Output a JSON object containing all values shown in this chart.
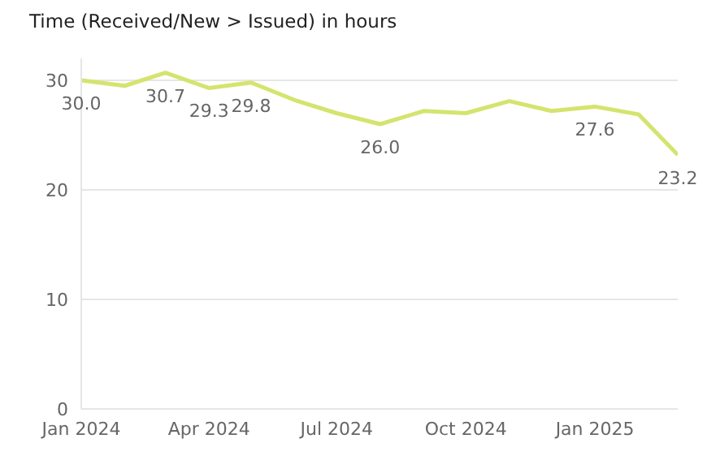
{
  "chart_data": {
    "type": "line",
    "title": "Time (Received/New > Issued) in hours",
    "x": [
      "2024-01",
      "2024-02",
      "2024-03",
      "2024-04",
      "2024-05",
      "2024-06",
      "2024-07",
      "2024-08",
      "2024-09",
      "2024-10",
      "2024-11",
      "2024-12",
      "2025-01",
      "2025-02",
      "2025-03"
    ],
    "series": [
      {
        "color": "#d4e46e",
        "values": [
          30.0,
          29.5,
          30.7,
          29.3,
          29.8,
          28.2,
          27.0,
          26.0,
          27.2,
          27.0,
          28.1,
          27.2,
          27.6,
          26.9,
          23.2
        ],
        "value_labels": [
          "30.0",
          null,
          "30.7",
          "29.3",
          "29.8",
          null,
          null,
          "26.0",
          null,
          null,
          null,
          null,
          "27.6",
          null,
          "23.2"
        ]
      }
    ],
    "xlim": [
      "2024-01",
      "2025-03"
    ],
    "xticks": [
      {
        "value": "2024-01",
        "label": "Jan 2024"
      },
      {
        "value": "2024-04",
        "label": "Apr 2024"
      },
      {
        "value": "2024-07",
        "label": "Jul 2024"
      },
      {
        "value": "2024-10",
        "label": "Oct 2024"
      },
      {
        "value": "2025-01",
        "label": "Jan 2025"
      }
    ],
    "ylim": [
      0,
      32
    ],
    "yticks": [
      0,
      10,
      20,
      30
    ],
    "grid": "y",
    "marker": "none",
    "line_style": "solid",
    "legend": false
  }
}
